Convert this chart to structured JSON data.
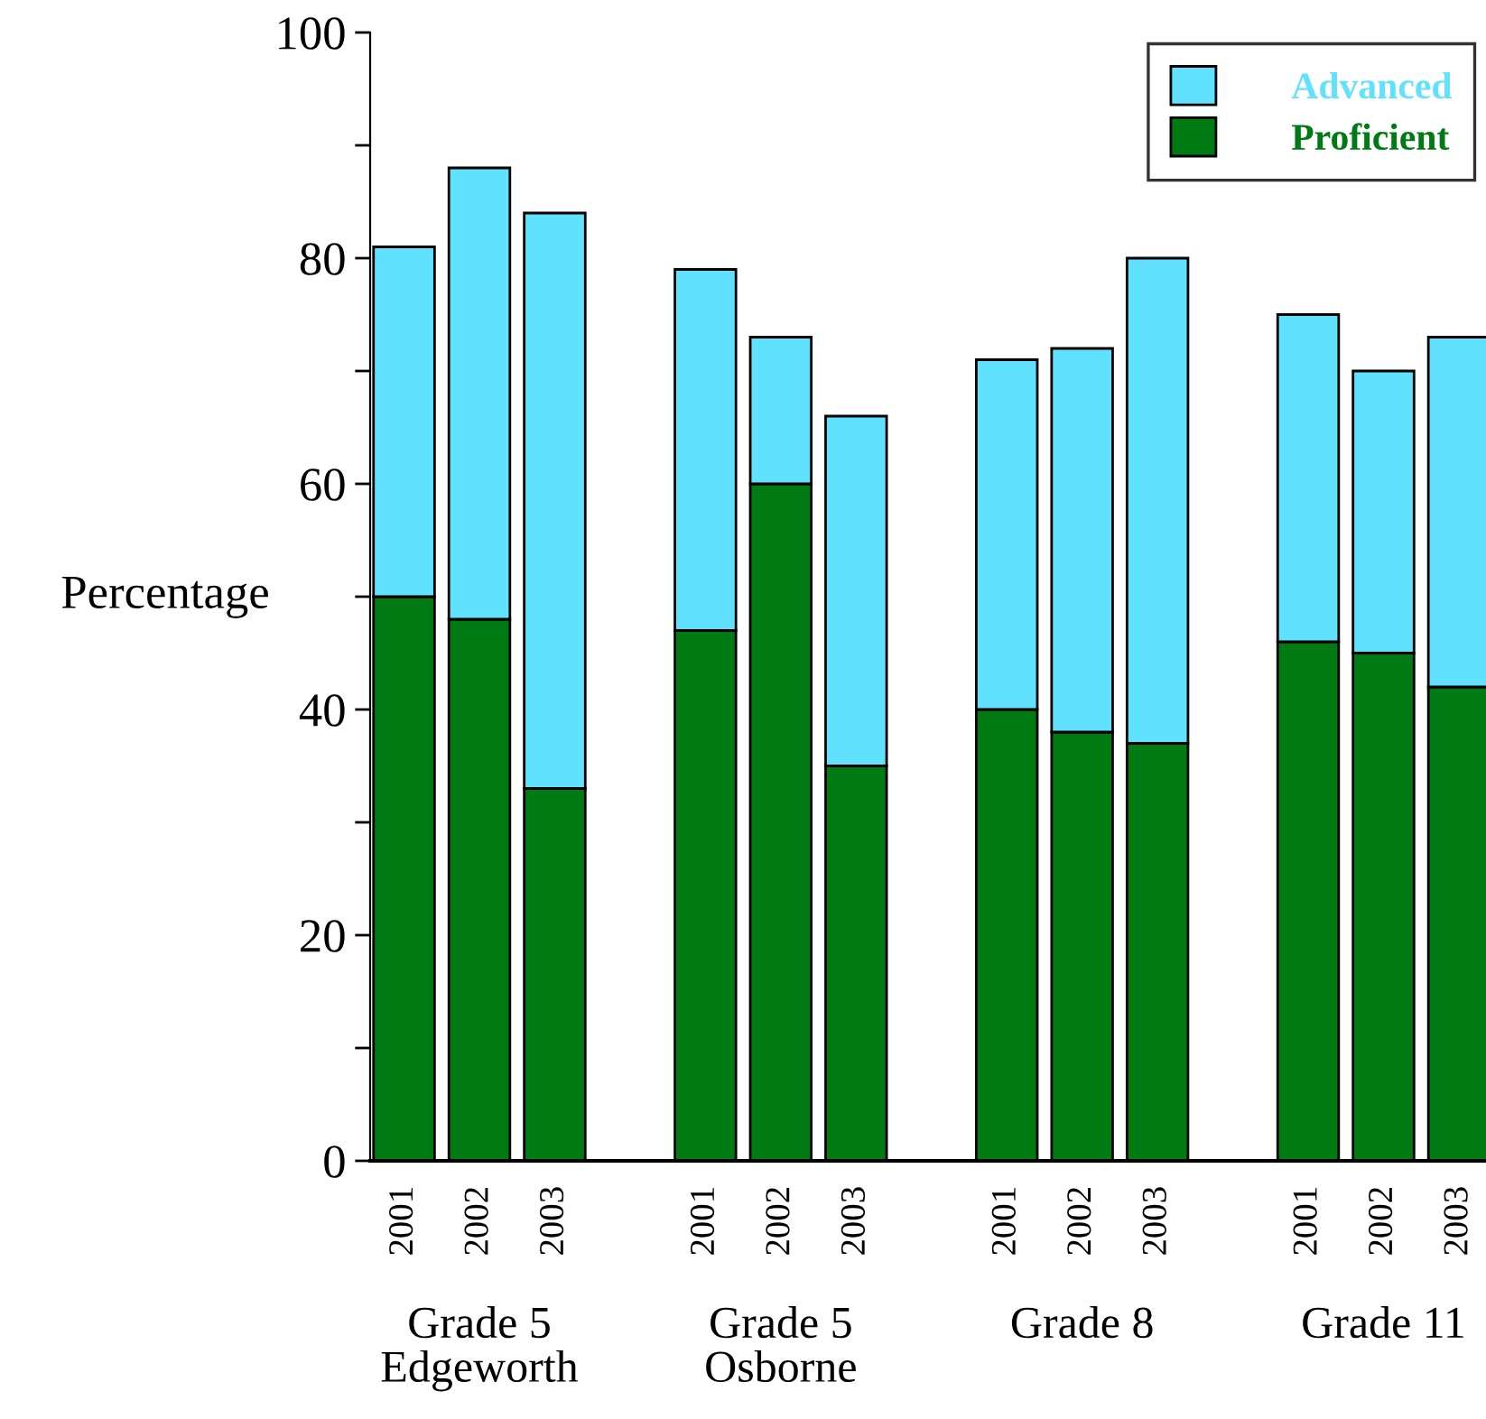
{
  "chart_data": {
    "type": "bar",
    "stacked": true,
    "ylabel": "Percentage",
    "categories": [
      "2001",
      "2002",
      "2003",
      null,
      "2001",
      "2002",
      "2003",
      null,
      "2001",
      "2002",
      "2003",
      null,
      "2001",
      "2002",
      "2003"
    ],
    "series": [
      {
        "name": "Proficient",
        "color": "#007a12",
        "values": [
          50,
          48,
          33,
          null,
          47,
          60,
          35,
          null,
          40,
          38,
          37,
          null,
          46,
          45,
          42
        ]
      },
      {
        "name": "Advanced",
        "color": "#60e2ff",
        "values": [
          31,
          40,
          51,
          null,
          32,
          13,
          31,
          null,
          31,
          34,
          43,
          null,
          29,
          25,
          31
        ]
      }
    ],
    "ylim": [
      0,
      100
    ],
    "yticks": [
      0,
      {
        "value": 10,
        "label": null
      },
      20,
      {
        "value": 30,
        "label": null
      },
      40,
      {
        "value": 50,
        "label": null
      },
      60,
      {
        "value": 70,
        "label": null
      },
      80,
      {
        "value": 90,
        "label": null
      },
      100
    ],
    "annotations": [
      "Grade 5\nEdgeworth",
      "Grade 5\nOsborne",
      "Grade 8",
      "Grade 11"
    ],
    "legend": "top right",
    "grid": false
  }
}
